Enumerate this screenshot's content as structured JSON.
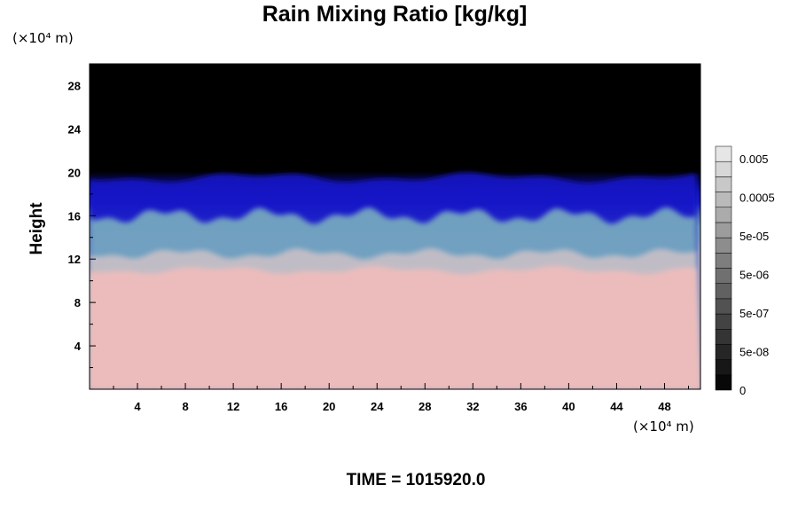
{
  "chart_data": {
    "type": "heatmap",
    "title": "Rain Mixing Ratio [kg/kg]",
    "ylabel": "Height",
    "x_unit": "(×10⁴ m)",
    "y_unit": "(×10⁴ m)",
    "xlim": [
      0,
      51
    ],
    "ylim": [
      0,
      30
    ],
    "x_ticks": [
      4,
      8,
      12,
      16,
      20,
      24,
      28,
      32,
      36,
      40,
      44,
      48
    ],
    "y_ticks": [
      4,
      8,
      12,
      16,
      20,
      24,
      28
    ],
    "colorbar": {
      "labels": [
        "0.005",
        "0.0005",
        "5e-05",
        "5e-06",
        "5e-07",
        "5e-08",
        "0"
      ],
      "levels": 16,
      "range": [
        0,
        0.01
      ]
    },
    "layers": [
      {
        "name": "top",
        "from_height": 19.5,
        "to_height": 30,
        "color": "#000000"
      },
      {
        "name": "blue-band",
        "from_height": 15,
        "to_height": 19.5,
        "color": "#1418c8"
      },
      {
        "name": "cyan-band",
        "from_height": 12,
        "to_height": 16,
        "color": "#7fb6bf"
      },
      {
        "name": "grey-band",
        "from_height": 10.5,
        "to_height": 12.5,
        "color": "#c9c0c6"
      },
      {
        "name": "bottom",
        "from_height": 0,
        "to_height": 11,
        "color": "#ecbcbc"
      }
    ],
    "time_label": "TIME = 1015920.0"
  }
}
